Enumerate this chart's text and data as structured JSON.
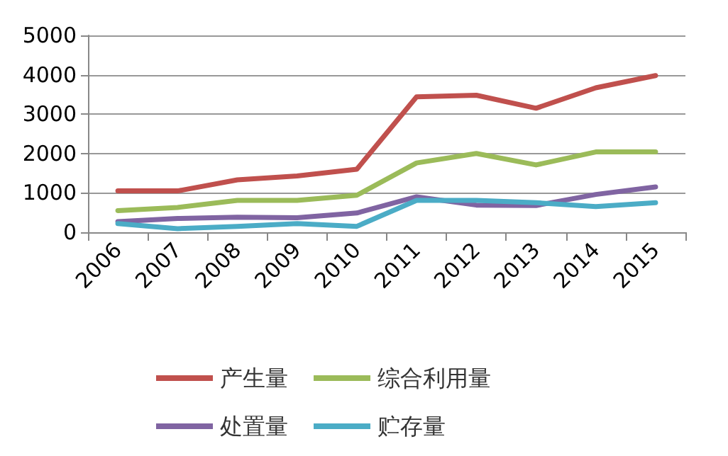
{
  "chart_data": {
    "type": "line",
    "categories": [
      "2006",
      "2007",
      "2008",
      "2009",
      "2010",
      "2011",
      "2012",
      "2013",
      "2014",
      "2015"
    ],
    "series": [
      {
        "name": "产生量",
        "color": "#c0504d",
        "values": [
          1050,
          1050,
          1330,
          1430,
          1600,
          3440,
          3480,
          3150,
          3670,
          3980
        ]
      },
      {
        "name": "综合利用量",
        "color": "#9bbb59",
        "values": [
          550,
          630,
          810,
          810,
          940,
          1760,
          2000,
          1710,
          2040,
          2040
        ]
      },
      {
        "name": "处置量",
        "color": "#8064a2",
        "values": [
          270,
          350,
          380,
          370,
          490,
          900,
          690,
          680,
          960,
          1150
        ]
      },
      {
        "name": "贮存量",
        "color": "#4bacc6",
        "values": [
          220,
          90,
          150,
          220,
          150,
          810,
          810,
          750,
          650,
          750
        ]
      }
    ],
    "ylim": [
      0,
      5000
    ],
    "yticks": [
      0,
      1000,
      2000,
      3000,
      4000,
      5000
    ],
    "grid": "y",
    "legend": "bottom",
    "marker": "none",
    "line_style": "solid"
  }
}
